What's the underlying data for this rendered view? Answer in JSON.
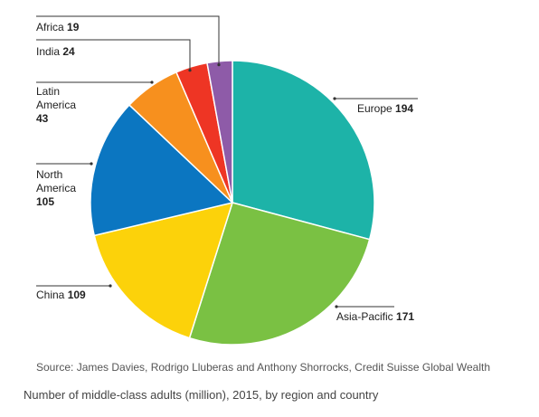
{
  "chart_data": {
    "type": "pie",
    "categories": [
      "Europe",
      "Asia-Pacific",
      "China",
      "North America",
      "Latin America",
      "India",
      "Africa"
    ],
    "values": [
      194,
      171,
      109,
      105,
      43,
      24,
      19
    ],
    "colors": [
      "#1db3a8",
      "#7ac143",
      "#fcd20a",
      "#0b76c1",
      "#f7901e",
      "#ee3524",
      "#8e5ba8"
    ],
    "labels": [
      {
        "lines": [
          "Europe"
        ],
        "value": "194"
      },
      {
        "lines": [
          "Asia-Pacific"
        ],
        "value": "171"
      },
      {
        "lines": [
          "China"
        ],
        "value": "109"
      },
      {
        "lines": [
          "North",
          "America"
        ],
        "value": "105"
      },
      {
        "lines": [
          "Latin",
          "America"
        ],
        "value": "43"
      },
      {
        "lines": [
          "India"
        ],
        "value": "24"
      },
      {
        "lines": [
          "Africa"
        ],
        "value": "19"
      }
    ],
    "start_angle_deg": 0,
    "direction": "clockwise"
  },
  "source": "Source: James Davies, Rodrigo Lluberas and Anthony Shorrocks, Credit Suisse Global Wealth",
  "caption": "Number of middle-class adults (million), 2015, by region and country"
}
